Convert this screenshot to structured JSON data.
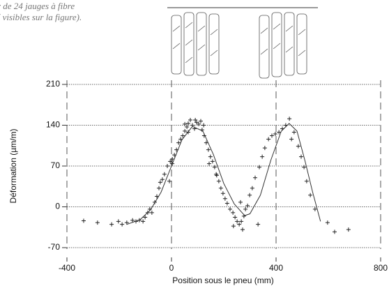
{
  "caption": {
    "lines": [
      "r de 24 jauges à fibre",
      "( visibles sur la figure)."
    ]
  },
  "chart_data": {
    "type": "scatter",
    "xlabel": "Position sous le pneu (mm)",
    "ylabel": "Déformation (µm/m)",
    "xlim": [
      -400,
      800
    ],
    "xticks": [
      -400,
      0,
      400,
      800
    ],
    "ylim": [
      -70,
      210
    ],
    "yticks": [
      -70,
      0,
      70,
      140,
      210
    ],
    "grid": true,
    "series": [
      {
        "type": "scatter",
        "color": "#222",
        "x": [
          -336,
          -283,
          -229,
          -203,
          -189,
          -171,
          -149,
          -136,
          -123,
          -109,
          -101,
          -91,
          -83,
          -75,
          -64,
          -56,
          -48,
          -43,
          -35,
          -27,
          -16,
          -5,
          3,
          11,
          19,
          27,
          35,
          43,
          51,
          59,
          64,
          72,
          80,
          88,
          96,
          104,
          112,
          117,
          125,
          133,
          141,
          149,
          157,
          165,
          173,
          181,
          189,
          197,
          205,
          213,
          224,
          235,
          243,
          251,
          259,
          267,
          277,
          283,
          291,
          299,
          309,
          320,
          331,
          336,
          347,
          357,
          371,
          384,
          397,
          411,
          424,
          437,
          451,
          459,
          469,
          485,
          496,
          507,
          517,
          531,
          549,
          597,
          624,
          677,
          51,
          64,
          91,
          123,
          3,
          -8,
          144,
          171,
          237,
          264,
          272
        ],
        "values": [
          -24,
          -27,
          -30,
          -25,
          -30,
          -27,
          -23,
          -25,
          -23,
          -25,
          -18,
          -10,
          -4,
          -10,
          8,
          18,
          32,
          42,
          47,
          56,
          70,
          78,
          82,
          89,
          98,
          110,
          116,
          122,
          130,
          137,
          143,
          149,
          140,
          134,
          145,
          142,
          147,
          132,
          122,
          110,
          98,
          86,
          78,
          68,
          54,
          44,
          32,
          23,
          14,
          6,
          -4,
          -10,
          -18,
          -25,
          -30,
          -25,
          -16,
          -4,
          2,
          20,
          32,
          50,
          -30,
          68,
          86,
          101,
          116,
          122,
          125,
          128,
          134,
          140,
          151,
          116,
          128,
          104,
          86,
          68,
          44,
          20,
          -4,
          -27,
          -43,
          -39,
          142,
          128,
          149,
          140,
          74,
          44,
          74,
          56,
          -33,
          8,
          -39
        ]
      },
      {
        "type": "line",
        "color": "#333",
        "x": [
          -170,
          -120,
          -80,
          -40,
          0,
          40,
          80,
          120,
          160,
          200,
          240,
          280,
          300,
          340,
          380,
          420,
          450,
          480,
          510,
          540,
          570
        ],
        "values": [
          -30,
          -22,
          -5,
          25,
          70,
          115,
          138,
          130,
          90,
          40,
          5,
          -15,
          -12,
          20,
          80,
          130,
          143,
          130,
          80,
          25,
          -25
        ]
      }
    ]
  }
}
